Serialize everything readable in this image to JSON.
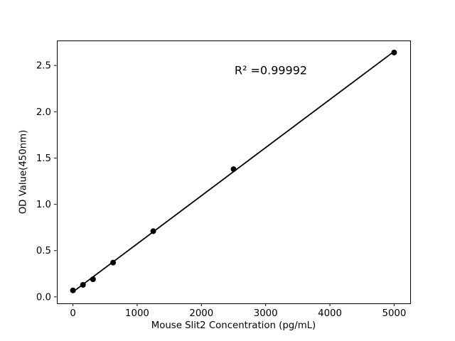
{
  "figure": {
    "background": "#ffffff",
    "text_color": "#000000"
  },
  "chart_data": {
    "type": "scatter",
    "title": "",
    "xlabel": "Mouse Slit2 Concentration (pg/mL)",
    "ylabel": "OD Value(450nm)",
    "x": [
      0,
      156.25,
      312.5,
      625,
      1250,
      2500,
      5000
    ],
    "y": [
      0.07,
      0.13,
      0.19,
      0.37,
      0.71,
      1.38,
      2.64
    ],
    "fit_line": {
      "kind": "linear-regression",
      "x_start": 0,
      "x_end": 5000
    },
    "r_squared": 0.99992,
    "annotation": {
      "text": "R² =0.99992"
    },
    "xlim": [
      -250,
      5250
    ],
    "ylim": [
      -0.07,
      2.77
    ],
    "xticks": [
      0,
      1000,
      2000,
      3000,
      4000,
      5000
    ],
    "xtick_labels": [
      "0",
      "1000",
      "2000",
      "3000",
      "4000",
      "5000"
    ],
    "yticks": [
      0.0,
      0.5,
      1.0,
      1.5,
      2.0,
      2.5
    ],
    "ytick_labels": [
      "0.0",
      "0.5",
      "1.0",
      "1.5",
      "2.0",
      "2.5"
    ],
    "grid": false,
    "legend": null,
    "marker_color": "#000000",
    "line_color": "#000000",
    "axis_color": "#000000"
  }
}
